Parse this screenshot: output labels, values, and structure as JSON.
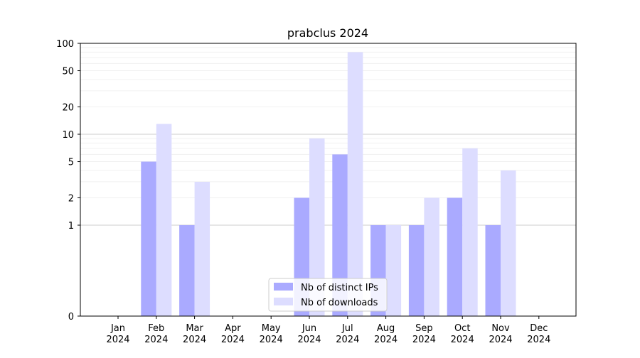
{
  "chart_data": {
    "type": "bar",
    "title": "prabclus 2024",
    "xlabel": "",
    "ylabel": "",
    "yscale": "symlog",
    "ylim": [
      0,
      100
    ],
    "yticks": [
      0,
      1,
      2,
      5,
      10,
      20,
      50,
      100
    ],
    "categories": [
      "Jan",
      "Feb",
      "Mar",
      "Apr",
      "May",
      "Jun",
      "Jul",
      "Aug",
      "Sep",
      "Oct",
      "Nov",
      "Dec"
    ],
    "category_year": "2024",
    "series": [
      {
        "name": "Nb of distinct IPs",
        "color": "#aaaaff",
        "values": [
          0,
          5,
          1,
          0,
          0,
          2,
          6,
          1,
          1,
          2,
          1,
          0
        ]
      },
      {
        "name": "Nb of downloads",
        "color": "#ddddff",
        "values": [
          0,
          13,
          3,
          0,
          0,
          9,
          80,
          1,
          2,
          7,
          4,
          0
        ]
      }
    ],
    "legend_position": "bottom-center",
    "grid": true
  }
}
